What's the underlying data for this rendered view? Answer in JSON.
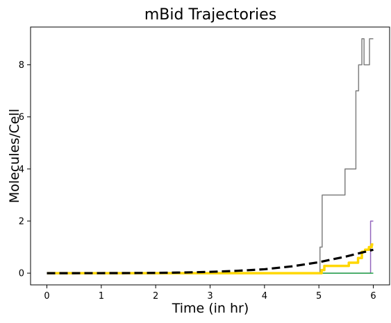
{
  "chart_data": {
    "type": "line",
    "title": "mBid Trajectories",
    "xlabel": "Time (in hr)",
    "ylabel": "Molecules/Cell",
    "xlim": [
      -0.3,
      6.3
    ],
    "ylim": [
      -0.45,
      9.45
    ],
    "x_ticks": [
      0,
      1,
      2,
      3,
      4,
      5,
      6
    ],
    "y_ticks": [
      0,
      2,
      4,
      6,
      8
    ],
    "grid": false,
    "legend": "none",
    "series": [
      {
        "color": "#7f7f7f",
        "style": "step",
        "width": 1.5,
        "points": [
          [
            0,
            0
          ],
          [
            5.02,
            0
          ],
          [
            5.02,
            1
          ],
          [
            5.06,
            1
          ],
          [
            5.06,
            3
          ],
          [
            5.48,
            3
          ],
          [
            5.48,
            4
          ],
          [
            5.68,
            4
          ],
          [
            5.68,
            7
          ],
          [
            5.73,
            7
          ],
          [
            5.73,
            8
          ],
          [
            5.79,
            8
          ],
          [
            5.79,
            9
          ],
          [
            5.83,
            9
          ],
          [
            5.83,
            8
          ],
          [
            5.93,
            8
          ],
          [
            5.93,
            9
          ],
          [
            6.0,
            9
          ]
        ]
      },
      {
        "color": "#9467bd",
        "style": "step",
        "width": 1.5,
        "points": [
          [
            0,
            0
          ],
          [
            5.95,
            0
          ],
          [
            5.95,
            2
          ],
          [
            6.0,
            2
          ]
        ]
      },
      {
        "color": "#17becf",
        "style": "step",
        "width": 1.5,
        "points": [
          [
            0,
            0
          ],
          [
            6.0,
            0
          ]
        ]
      },
      {
        "color": "#2ca02c",
        "style": "step",
        "width": 1.2,
        "points": [
          [
            0,
            0
          ],
          [
            6.0,
            0
          ]
        ]
      },
      {
        "color": "#ffd700",
        "style": "step",
        "width": 3.5,
        "points": [
          [
            0,
            0
          ],
          [
            5.05,
            0
          ],
          [
            5.05,
            0.12
          ],
          [
            5.1,
            0.12
          ],
          [
            5.1,
            0.28
          ],
          [
            5.55,
            0.28
          ],
          [
            5.55,
            0.4
          ],
          [
            5.72,
            0.4
          ],
          [
            5.72,
            0.58
          ],
          [
            5.79,
            0.58
          ],
          [
            5.79,
            0.82
          ],
          [
            5.85,
            0.82
          ],
          [
            5.85,
            0.9
          ],
          [
            5.92,
            0.9
          ],
          [
            5.92,
            1.0
          ],
          [
            5.97,
            1.0
          ],
          [
            5.97,
            1.1
          ],
          [
            6.0,
            1.1
          ]
        ]
      },
      {
        "color": "#000000",
        "style": "dashed",
        "width": 3.2,
        "points": [
          [
            0,
            0
          ],
          [
            0.5,
            0
          ],
          [
            1,
            0.001
          ],
          [
            1.5,
            0.004
          ],
          [
            2,
            0.01
          ],
          [
            2.5,
            0.025
          ],
          [
            3,
            0.05
          ],
          [
            3.5,
            0.09
          ],
          [
            4,
            0.15
          ],
          [
            4.5,
            0.26
          ],
          [
            5,
            0.42
          ],
          [
            5.5,
            0.64
          ],
          [
            6,
            0.9
          ]
        ]
      }
    ]
  }
}
